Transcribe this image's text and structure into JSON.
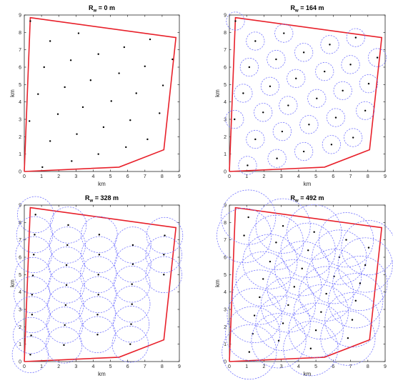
{
  "chart_data": [
    {
      "type": "scatter",
      "title_main": "R",
      "title_sub": "w",
      "title_rest": " = 0 m",
      "xlabel": "km",
      "ylabel": "km",
      "xlim": [
        0,
        9
      ],
      "ylim": [
        0,
        9
      ],
      "xticks": [
        "0",
        "1",
        "2",
        "3",
        "4",
        "5",
        "6",
        "7",
        "8",
        "9"
      ],
      "yticks": [
        "0",
        "1",
        "2",
        "3",
        "4",
        "5",
        "6",
        "7",
        "8",
        "9"
      ],
      "boundary_color": "#e8202a",
      "boundary": [
        [
          0,
          0
        ],
        [
          0.35,
          8.85
        ],
        [
          8.8,
          7.7
        ],
        [
          8.1,
          1.25
        ],
        [
          5.5,
          0.25
        ],
        [
          0,
          0
        ]
      ],
      "circle_radius_km": 0,
      "points": [
        [
          0.35,
          8.65
        ],
        [
          1.5,
          7.5
        ],
        [
          3.15,
          7.95
        ],
        [
          5.8,
          7.15
        ],
        [
          7.3,
          7.6
        ],
        [
          4.3,
          6.75
        ],
        [
          1.15,
          6.0
        ],
        [
          2.7,
          6.4
        ],
        [
          7.0,
          6.05
        ],
        [
          5.5,
          5.65
        ],
        [
          8.6,
          6.45
        ],
        [
          3.85,
          5.25
        ],
        [
          0.8,
          4.45
        ],
        [
          2.35,
          4.85
        ],
        [
          6.5,
          4.5
        ],
        [
          8.05,
          4.95
        ],
        [
          5.05,
          4.05
        ],
        [
          3.4,
          3.7
        ],
        [
          1.95,
          3.3
        ],
        [
          7.85,
          3.35
        ],
        [
          0.3,
          2.9
        ],
        [
          6.15,
          2.95
        ],
        [
          4.6,
          2.55
        ],
        [
          3.05,
          2.15
        ],
        [
          1.5,
          1.75
        ],
        [
          7.15,
          1.85
        ],
        [
          5.9,
          1.4
        ],
        [
          4.3,
          1.0
        ],
        [
          2.75,
          0.6
        ],
        [
          1.05,
          0.25
        ]
      ]
    },
    {
      "type": "scatter",
      "title_main": "R",
      "title_sub": "w",
      "title_rest": " = 164 m",
      "xlabel": "km",
      "ylabel": "km",
      "xlim": [
        0,
        9
      ],
      "ylim": [
        0,
        9
      ],
      "xticks": [
        "0",
        "1",
        "2",
        "3",
        "4",
        "5",
        "6",
        "7",
        "8",
        "9"
      ],
      "yticks": [
        "0",
        "1",
        "2",
        "3",
        "4",
        "5",
        "6",
        "7",
        "8",
        "9"
      ],
      "boundary_color": "#e8202a",
      "circle_color": "#6666ff",
      "boundary": [
        [
          0,
          0
        ],
        [
          0.35,
          8.85
        ],
        [
          8.8,
          7.7
        ],
        [
          8.1,
          1.25
        ],
        [
          5.5,
          0.25
        ],
        [
          0,
          0
        ]
      ],
      "circle_radius_km": 0.164,
      "points": [
        [
          0.35,
          8.65
        ],
        [
          1.5,
          7.5
        ],
        [
          3.15,
          7.95
        ],
        [
          5.8,
          7.3
        ],
        [
          7.3,
          7.7
        ],
        [
          4.3,
          6.85
        ],
        [
          1.15,
          6.0
        ],
        [
          2.7,
          6.45
        ],
        [
          7.0,
          6.15
        ],
        [
          5.5,
          5.75
        ],
        [
          8.55,
          6.55
        ],
        [
          3.85,
          5.35
        ],
        [
          0.8,
          4.5
        ],
        [
          2.35,
          4.9
        ],
        [
          6.55,
          4.65
        ],
        [
          8.05,
          5.05
        ],
        [
          5.05,
          4.2
        ],
        [
          3.4,
          3.8
        ],
        [
          1.95,
          3.4
        ],
        [
          7.85,
          3.5
        ],
        [
          0.3,
          3.0
        ],
        [
          6.15,
          3.1
        ],
        [
          4.6,
          2.7
        ],
        [
          3.05,
          2.3
        ],
        [
          1.5,
          1.85
        ],
        [
          7.15,
          1.95
        ],
        [
          5.9,
          1.55
        ],
        [
          4.3,
          1.15
        ],
        [
          2.75,
          0.75
        ],
        [
          1.05,
          0.35
        ]
      ]
    },
    {
      "type": "scatter",
      "title_main": "R",
      "title_sub": "w",
      "title_rest": " = 328 m",
      "xlabel": "km",
      "ylabel": "km",
      "xlim": [
        0,
        9
      ],
      "ylim": [
        0,
        9
      ],
      "xticks": [
        "0",
        "1",
        "2",
        "3",
        "4",
        "5",
        "6",
        "7",
        "8",
        "9"
      ],
      "yticks": [
        "0",
        "1",
        "2",
        "3",
        "4",
        "5",
        "6",
        "7",
        "8",
        "9"
      ],
      "boundary_color": "#e8202a",
      "circle_color": "#6666ff",
      "boundary": [
        [
          0,
          0
        ],
        [
          0.35,
          8.85
        ],
        [
          8.8,
          7.7
        ],
        [
          8.1,
          1.25
        ],
        [
          5.5,
          0.25
        ],
        [
          0,
          0
        ]
      ],
      "circle_radius_km": 0.328,
      "points": [
        [
          0.65,
          8.45
        ],
        [
          0.6,
          7.3
        ],
        [
          0.55,
          6.15
        ],
        [
          0.5,
          4.95
        ],
        [
          0.45,
          3.85
        ],
        [
          0.45,
          2.7
        ],
        [
          0.4,
          1.5
        ],
        [
          0.35,
          0.4
        ],
        [
          2.55,
          7.85
        ],
        [
          2.5,
          6.7
        ],
        [
          2.45,
          5.55
        ],
        [
          2.45,
          4.4
        ],
        [
          2.4,
          3.25
        ],
        [
          2.35,
          2.1
        ],
        [
          2.3,
          0.95
        ],
        [
          4.35,
          7.3
        ],
        [
          4.35,
          6.15
        ],
        [
          4.3,
          5.0
        ],
        [
          4.3,
          3.85
        ],
        [
          4.25,
          2.7
        ],
        [
          4.25,
          1.55
        ],
        [
          6.3,
          6.7
        ],
        [
          6.3,
          5.6
        ],
        [
          6.25,
          4.45
        ],
        [
          6.25,
          3.3
        ],
        [
          6.2,
          2.15
        ],
        [
          6.15,
          1.0
        ],
        [
          8.15,
          7.25
        ],
        [
          8.1,
          6.15
        ],
        [
          8.1,
          5.0
        ]
      ]
    },
    {
      "type": "scatter",
      "title_main": "R",
      "title_sub": "w",
      "title_rest": " = 492 m",
      "xlabel": "km",
      "ylabel": "km",
      "xlim": [
        0,
        9
      ],
      "ylim": [
        0,
        9
      ],
      "xticks": [
        "0",
        "1",
        "2",
        "3",
        "4",
        "5",
        "6",
        "7",
        "8",
        "9"
      ],
      "yticks": [
        "0",
        "1",
        "2",
        "3",
        "4",
        "5",
        "6",
        "7",
        "8",
        "9"
      ],
      "boundary_color": "#e8202a",
      "circle_color": "#6666ff",
      "boundary": [
        [
          0,
          0
        ],
        [
          0.35,
          8.85
        ],
        [
          8.8,
          7.7
        ],
        [
          8.1,
          1.25
        ],
        [
          5.5,
          0.25
        ],
        [
          0,
          0
        ]
      ],
      "circle_radius_km": 0.492,
      "points": [
        [
          1.1,
          8.3
        ],
        [
          0.85,
          7.25
        ],
        [
          3.1,
          7.8
        ],
        [
          2.7,
          6.85
        ],
        [
          4.9,
          7.45
        ],
        [
          4.55,
          6.4
        ],
        [
          6.75,
          7.0
        ],
        [
          6.35,
          6.0
        ],
        [
          8.05,
          6.55
        ],
        [
          2.35,
          5.75
        ],
        [
          4.2,
          5.35
        ],
        [
          6.05,
          4.9
        ],
        [
          7.85,
          5.55
        ],
        [
          1.95,
          4.75
        ],
        [
          3.75,
          4.3
        ],
        [
          5.6,
          3.9
        ],
        [
          7.55,
          4.5
        ],
        [
          1.75,
          3.7
        ],
        [
          3.4,
          3.25
        ],
        [
          5.3,
          2.85
        ],
        [
          7.3,
          3.5
        ],
        [
          1.45,
          2.65
        ],
        [
          3.1,
          2.2
        ],
        [
          5.0,
          1.8
        ],
        [
          7.1,
          2.4
        ],
        [
          1.35,
          1.6
        ],
        [
          2.85,
          1.2
        ],
        [
          4.7,
          0.75
        ],
        [
          6.85,
          1.35
        ],
        [
          1.15,
          0.55
        ]
      ]
    }
  ]
}
